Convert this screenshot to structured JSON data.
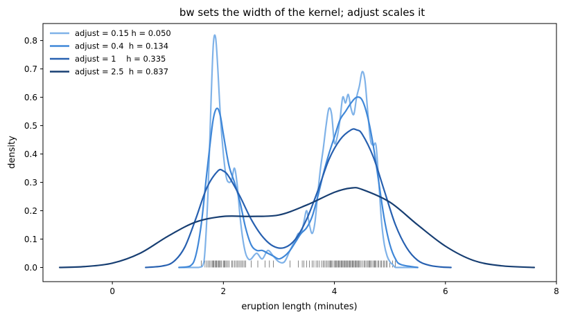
{
  "chart_data": {
    "type": "line",
    "title": "bw sets the width of the kernel; adjust scales it",
    "xlabel": "eruption length (minutes)",
    "ylabel": "density",
    "xlim": [
      -1.25,
      8.0
    ],
    "ylim": [
      -0.05,
      0.86
    ],
    "xticks": [
      0,
      2,
      4,
      6,
      8
    ],
    "yticks": [
      0.0,
      0.1,
      0.2,
      0.3,
      0.4,
      0.5,
      0.6,
      0.7,
      0.8
    ],
    "xtick_labels": [
      "0",
      "2",
      "4",
      "6",
      "8"
    ],
    "ytick_labels": [
      "0.0",
      "0.1",
      "0.2",
      "0.3",
      "0.4",
      "0.5",
      "0.6",
      "0.7",
      "0.8"
    ],
    "grid": false,
    "legend_position": "top-left",
    "series": [
      {
        "name": "adjust = 0.15 h = 0.050",
        "color": "#7fb2e8",
        "x": [
          1.2,
          1.55,
          1.65,
          1.72,
          1.78,
          1.82,
          1.86,
          1.9,
          1.95,
          2.0,
          2.05,
          2.1,
          2.15,
          2.2,
          2.25,
          2.3,
          2.35,
          2.4,
          2.45,
          2.5,
          2.6,
          2.7,
          2.8,
          2.9,
          3.0,
          3.1,
          3.2,
          3.3,
          3.35,
          3.4,
          3.45,
          3.5,
          3.55,
          3.6,
          3.65,
          3.7,
          3.75,
          3.8,
          3.85,
          3.9,
          3.95,
          4.0,
          4.05,
          4.1,
          4.15,
          4.2,
          4.25,
          4.3,
          4.35,
          4.4,
          4.45,
          4.5,
          4.55,
          4.6,
          4.65,
          4.7,
          4.75,
          4.8,
          4.85,
          4.9,
          4.95,
          5.0,
          5.05,
          5.1,
          5.2,
          5.5
        ],
        "y": [
          0.0,
          0.0,
          0.02,
          0.25,
          0.6,
          0.79,
          0.81,
          0.7,
          0.52,
          0.4,
          0.32,
          0.3,
          0.31,
          0.35,
          0.29,
          0.18,
          0.1,
          0.05,
          0.03,
          0.03,
          0.05,
          0.03,
          0.06,
          0.04,
          0.02,
          0.02,
          0.06,
          0.1,
          0.12,
          0.12,
          0.16,
          0.2,
          0.15,
          0.12,
          0.16,
          0.26,
          0.35,
          0.42,
          0.5,
          0.56,
          0.54,
          0.44,
          0.46,
          0.52,
          0.6,
          0.58,
          0.61,
          0.56,
          0.54,
          0.6,
          0.64,
          0.69,
          0.66,
          0.55,
          0.45,
          0.43,
          0.43,
          0.3,
          0.16,
          0.08,
          0.04,
          0.02,
          0.01,
          0.0,
          0.0,
          0.0
        ]
      },
      {
        "name": "adjust = 0.4  h = 0.134",
        "color": "#3f87d8",
        "x": [
          1.2,
          1.4,
          1.5,
          1.6,
          1.7,
          1.8,
          1.85,
          1.9,
          1.95,
          2.0,
          2.1,
          2.2,
          2.3,
          2.4,
          2.5,
          2.6,
          2.7,
          2.8,
          2.9,
          3.0,
          3.1,
          3.2,
          3.3,
          3.4,
          3.5,
          3.6,
          3.7,
          3.8,
          3.9,
          4.0,
          4.1,
          4.2,
          4.3,
          4.4,
          4.5,
          4.6,
          4.7,
          4.8,
          4.9,
          5.0,
          5.1,
          5.2,
          5.5
        ],
        "y": [
          0.0,
          0.005,
          0.04,
          0.15,
          0.33,
          0.5,
          0.55,
          0.56,
          0.53,
          0.47,
          0.36,
          0.3,
          0.23,
          0.14,
          0.08,
          0.06,
          0.06,
          0.05,
          0.04,
          0.03,
          0.04,
          0.06,
          0.09,
          0.12,
          0.14,
          0.18,
          0.25,
          0.33,
          0.4,
          0.46,
          0.52,
          0.55,
          0.58,
          0.6,
          0.59,
          0.53,
          0.43,
          0.3,
          0.17,
          0.08,
          0.03,
          0.01,
          0.0
        ]
      },
      {
        "name": "adjust = 1    h = 0.335",
        "color": "#2760b0",
        "x": [
          0.6,
          0.9,
          1.1,
          1.3,
          1.5,
          1.7,
          1.9,
          2.0,
          2.1,
          2.3,
          2.5,
          2.7,
          2.9,
          3.1,
          3.3,
          3.5,
          3.7,
          3.9,
          4.1,
          4.3,
          4.4,
          4.5,
          4.7,
          4.9,
          5.1,
          5.3,
          5.5,
          5.7,
          5.9,
          6.1
        ],
        "y": [
          0.0,
          0.005,
          0.02,
          0.07,
          0.17,
          0.28,
          0.34,
          0.34,
          0.32,
          0.25,
          0.17,
          0.11,
          0.075,
          0.07,
          0.1,
          0.17,
          0.27,
          0.38,
          0.45,
          0.485,
          0.485,
          0.47,
          0.39,
          0.27,
          0.15,
          0.07,
          0.025,
          0.008,
          0.002,
          0.0
        ]
      },
      {
        "name": "adjust = 2.5  h = 0.837",
        "color": "#173e72",
        "x": [
          -0.95,
          -0.5,
          0.0,
          0.5,
          1.0,
          1.5,
          2.0,
          2.5,
          3.0,
          3.5,
          4.0,
          4.3,
          4.5,
          5.0,
          5.5,
          6.0,
          6.5,
          7.0,
          7.6
        ],
        "y": [
          0.0,
          0.003,
          0.015,
          0.05,
          0.11,
          0.16,
          0.18,
          0.18,
          0.185,
          0.22,
          0.265,
          0.28,
          0.275,
          0.23,
          0.15,
          0.075,
          0.025,
          0.006,
          0.0
        ]
      }
    ],
    "rug_x": [
      1.6,
      1.67,
      1.7,
      1.73,
      1.75,
      1.78,
      1.8,
      1.82,
      1.83,
      1.85,
      1.87,
      1.88,
      1.9,
      1.92,
      1.93,
      1.95,
      1.97,
      2.0,
      2.02,
      2.03,
      2.05,
      2.08,
      2.1,
      2.15,
      2.17,
      2.2,
      2.23,
      2.25,
      2.28,
      2.3,
      2.33,
      2.35,
      2.38,
      2.4,
      2.5,
      2.62,
      2.75,
      2.83,
      2.9,
      3.2,
      3.35,
      3.42,
      3.45,
      3.5,
      3.55,
      3.6,
      3.63,
      3.67,
      3.7,
      3.73,
      3.77,
      3.8,
      3.82,
      3.85,
      3.87,
      3.9,
      3.92,
      3.93,
      3.95,
      3.97,
      4.0,
      4.02,
      4.03,
      4.05,
      4.07,
      4.08,
      4.1,
      4.12,
      4.13,
      4.15,
      4.17,
      4.18,
      4.2,
      4.22,
      4.23,
      4.25,
      4.27,
      4.28,
      4.3,
      4.32,
      4.33,
      4.35,
      4.37,
      4.38,
      4.4,
      4.42,
      4.43,
      4.45,
      4.47,
      4.5,
      4.53,
      4.55,
      4.57,
      4.6,
      4.62,
      4.63,
      4.65,
      4.67,
      4.7,
      4.72,
      4.73,
      4.75,
      4.78,
      4.8,
      4.83,
      4.85,
      4.88,
      4.9,
      4.93,
      4.95,
      5.0,
      5.05,
      5.1
    ]
  }
}
